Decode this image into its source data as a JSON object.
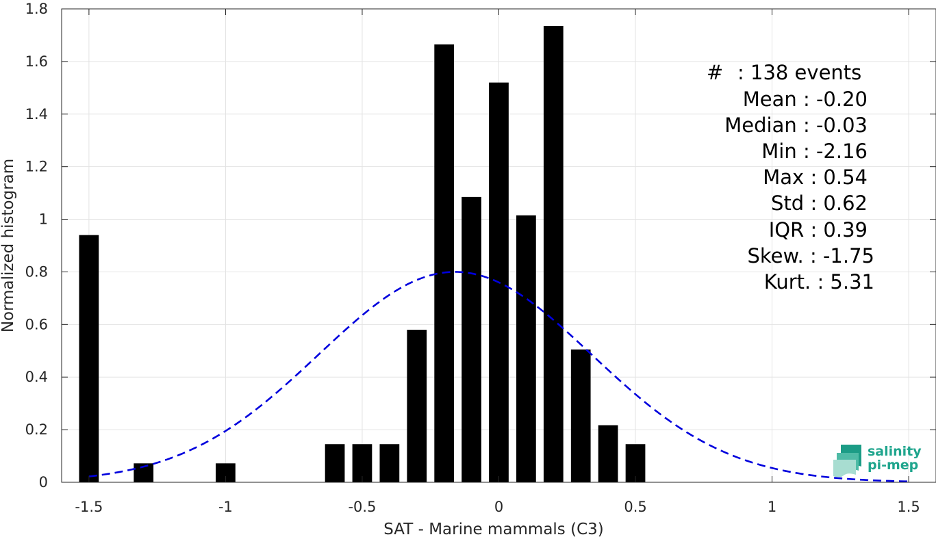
{
  "chart_data": {
    "type": "bar",
    "xlabel": "SAT - Marine mammals (C3)",
    "ylabel": "Normalized histogram",
    "xlim": [
      -1.6,
      1.6
    ],
    "ylim": [
      0,
      1.8
    ],
    "x_ticks": [
      -1.5,
      -1,
      -0.5,
      0,
      0.5,
      1,
      1.5
    ],
    "x_tick_labels": [
      "-1.5",
      "-1",
      "-0.5",
      "0",
      "0.5",
      "1",
      "1.5"
    ],
    "y_ticks": [
      0,
      0.2,
      0.4,
      0.6,
      0.8,
      1,
      1.2,
      1.4,
      1.6,
      1.8
    ],
    "y_tick_labels": [
      "0",
      "0.2",
      "0.4",
      "0.6",
      "0.8",
      "1",
      "1.2",
      "1.4",
      "1.6",
      "1.8"
    ],
    "grid": true,
    "bar_color": "#000000",
    "bin_width": 0.1,
    "bars": [
      {
        "x": -1.5,
        "y": 0.94
      },
      {
        "x": -1.3,
        "y": 0.072
      },
      {
        "x": -1.0,
        "y": 0.072
      },
      {
        "x": -0.6,
        "y": 0.145
      },
      {
        "x": -0.5,
        "y": 0.145
      },
      {
        "x": -0.4,
        "y": 0.145
      },
      {
        "x": -0.3,
        "y": 0.58
      },
      {
        "x": -0.2,
        "y": 1.665
      },
      {
        "x": -0.1,
        "y": 1.085
      },
      {
        "x": 0.0,
        "y": 1.52
      },
      {
        "x": 0.1,
        "y": 1.015
      },
      {
        "x": 0.2,
        "y": 1.735
      },
      {
        "x": 0.3,
        "y": 0.505
      },
      {
        "x": 0.4,
        "y": 0.217
      },
      {
        "x": 0.5,
        "y": 0.145
      }
    ],
    "fit_curve": {
      "style": "dashed",
      "color": "#0000dd",
      "mean": -0.16,
      "std": 0.5,
      "peak": 0.8,
      "x_range": [
        -1.5,
        1.5
      ]
    }
  },
  "stats": [
    {
      "label": "#",
      "value": ": 138 events"
    },
    {
      "label": "Mean",
      "value": ": -0.20"
    },
    {
      "label": "Median",
      "value": ": -0.03"
    },
    {
      "label": "Min",
      "value": ": -2.16"
    },
    {
      "label": "Max",
      "value": ": 0.54"
    },
    {
      "label": "Std",
      "value": ": 0.62"
    },
    {
      "label": "IQR",
      "value": ": 0.39"
    },
    {
      "label": "Skew.",
      "value": ": -1.75"
    },
    {
      "label": "Kurt.",
      "value": ": 5.31"
    }
  ],
  "logo": {
    "line1": "salinity",
    "line2": "pi-mep",
    "color": "#1fa58d"
  }
}
